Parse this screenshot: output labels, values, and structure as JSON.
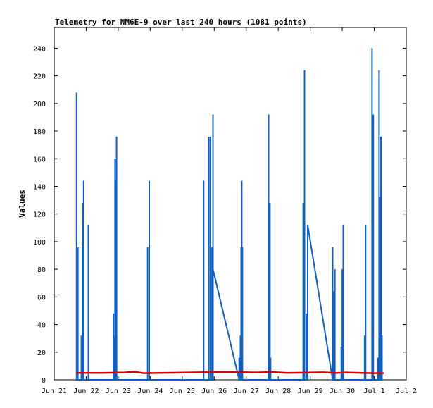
{
  "chart_data": {
    "type": "line",
    "title": "Telemetry for NM6E-9 over last 240 hours (1081 points)",
    "xlabel": "",
    "ylabel": "Values",
    "grid": false,
    "legend": "none",
    "x_ticks": [
      "Jun 21",
      "Jun 22",
      "Jun 23",
      "Jun 24",
      "Jun 25",
      "Jun 26",
      "Jun 27",
      "Jun 28",
      "Jun 29",
      "Jun 30",
      "Jul 1",
      "Jul 2"
    ],
    "x_range_days": [
      0,
      11
    ],
    "y_ticks": [
      0,
      20,
      40,
      60,
      80,
      100,
      120,
      140,
      160,
      180,
      200,
      220,
      240
    ],
    "ylim": [
      0,
      255
    ],
    "colors": {
      "series1": "#1060c0",
      "series2": "#e00000",
      "axis": "#000000"
    },
    "series": [
      {
        "color": "#1060c0",
        "points": [
          [
            0.7,
            0
          ],
          [
            0.7,
            208
          ],
          [
            0.7,
            0
          ],
          [
            0.74,
            0
          ],
          [
            0.74,
            96
          ],
          [
            0.74,
            0
          ],
          [
            0.85,
            0
          ],
          [
            0.85,
            32
          ],
          [
            0.85,
            0
          ],
          [
            0.88,
            0
          ],
          [
            0.88,
            96
          ],
          [
            0.88,
            0
          ],
          [
            0.9,
            0
          ],
          [
            0.9,
            128
          ],
          [
            0.9,
            0
          ],
          [
            0.92,
            0
          ],
          [
            0.92,
            144
          ],
          [
            0.92,
            0
          ],
          [
            1.07,
            0
          ],
          [
            1.07,
            112
          ],
          [
            1.07,
            0
          ],
          [
            1.85,
            0
          ],
          [
            1.85,
            48
          ],
          [
            1.85,
            0
          ],
          [
            1.88,
            0
          ],
          [
            1.88,
            32
          ],
          [
            1.88,
            0
          ],
          [
            1.9,
            0
          ],
          [
            1.9,
            160
          ],
          [
            1.9,
            0
          ],
          [
            1.93,
            0
          ],
          [
            1.93,
            144
          ],
          [
            1.93,
            0
          ],
          [
            1.95,
            0
          ],
          [
            1.95,
            176
          ],
          [
            1.95,
            0
          ],
          [
            2.92,
            0
          ],
          [
            2.92,
            96
          ],
          [
            2.92,
            0
          ],
          [
            2.97,
            0
          ],
          [
            2.97,
            144
          ],
          [
            2.97,
            0
          ],
          [
            4.67,
            0
          ],
          [
            4.67,
            144
          ],
          [
            4.67,
            0
          ],
          [
            4.83,
            0
          ],
          [
            4.83,
            176
          ],
          [
            4.83,
            0
          ],
          [
            4.88,
            0
          ],
          [
            4.88,
            176
          ],
          [
            4.88,
            0
          ],
          [
            4.93,
            0
          ],
          [
            4.93,
            96
          ],
          [
            4.93,
            0
          ],
          [
            4.96,
            0
          ],
          [
            4.96,
            192
          ],
          [
            4.96,
            80
          ],
          [
            5.78,
            0
          ],
          [
            5.78,
            16
          ],
          [
            5.78,
            0
          ],
          [
            5.82,
            0
          ],
          [
            5.82,
            32
          ],
          [
            5.82,
            0
          ],
          [
            5.84,
            0
          ],
          [
            5.84,
            96
          ],
          [
            5.84,
            0
          ],
          [
            5.86,
            0
          ],
          [
            5.86,
            144
          ],
          [
            5.86,
            0
          ],
          [
            5.88,
            0
          ],
          [
            5.88,
            96
          ],
          [
            5.88,
            0
          ],
          [
            6.7,
            0
          ],
          [
            6.7,
            192
          ],
          [
            6.7,
            0
          ],
          [
            6.74,
            0
          ],
          [
            6.74,
            128
          ],
          [
            6.74,
            0
          ],
          [
            6.76,
            0
          ],
          [
            6.76,
            16
          ],
          [
            6.76,
            0
          ],
          [
            7.78,
            0
          ],
          [
            7.78,
            128
          ],
          [
            7.78,
            0
          ],
          [
            7.82,
            0
          ],
          [
            7.82,
            224
          ],
          [
            7.82,
            0
          ],
          [
            7.88,
            0
          ],
          [
            7.88,
            48
          ],
          [
            7.88,
            0
          ],
          [
            7.92,
            0
          ],
          [
            7.92,
            112
          ],
          [
            8.7,
            0
          ],
          [
            8.7,
            96
          ],
          [
            8.7,
            0
          ],
          [
            8.74,
            0
          ],
          [
            8.74,
            64
          ],
          [
            8.74,
            0
          ],
          [
            8.77,
            0
          ],
          [
            8.77,
            80
          ],
          [
            8.77,
            0
          ],
          [
            8.97,
            0
          ],
          [
            8.97,
            24
          ],
          [
            8.97,
            0
          ],
          [
            9.0,
            0
          ],
          [
            9.0,
            80
          ],
          [
            9.0,
            0
          ],
          [
            9.03,
            0
          ],
          [
            9.03,
            112
          ],
          [
            9.03,
            0
          ],
          [
            9.7,
            0
          ],
          [
            9.7,
            32
          ],
          [
            9.7,
            0
          ],
          [
            9.73,
            0
          ],
          [
            9.73,
            112
          ],
          [
            9.73,
            0
          ],
          [
            9.93,
            0
          ],
          [
            9.93,
            240
          ],
          [
            9.93,
            0
          ],
          [
            9.97,
            0
          ],
          [
            9.97,
            192
          ],
          [
            9.97,
            0
          ],
          [
            10.12,
            0
          ],
          [
            10.12,
            16
          ],
          [
            10.12,
            0
          ],
          [
            10.15,
            0
          ],
          [
            10.15,
            224
          ],
          [
            10.15,
            0
          ],
          [
            10.18,
            0
          ],
          [
            10.18,
            132
          ],
          [
            10.18,
            0
          ],
          [
            10.21,
            0
          ],
          [
            10.21,
            176
          ],
          [
            10.21,
            0
          ],
          [
            10.24,
            0
          ],
          [
            10.24,
            32
          ],
          [
            10.24,
            0
          ]
        ]
      },
      {
        "color": "#e00000",
        "points": [
          [
            0.7,
            5.0
          ],
          [
            1.5,
            5.0
          ],
          [
            2.2,
            5.3
          ],
          [
            2.5,
            5.8
          ],
          [
            2.8,
            4.8
          ],
          [
            3.3,
            5.0
          ],
          [
            4.0,
            5.2
          ],
          [
            4.6,
            5.4
          ],
          [
            5.0,
            5.6
          ],
          [
            5.8,
            5.5
          ],
          [
            6.3,
            5.3
          ],
          [
            6.8,
            5.6
          ],
          [
            7.3,
            5.0
          ],
          [
            7.9,
            5.2
          ],
          [
            8.4,
            5.4
          ],
          [
            8.8,
            4.9
          ],
          [
            9.1,
            5.3
          ],
          [
            9.6,
            5.0
          ],
          [
            10.0,
            4.8
          ],
          [
            10.3,
            4.8
          ]
        ]
      }
    ]
  }
}
